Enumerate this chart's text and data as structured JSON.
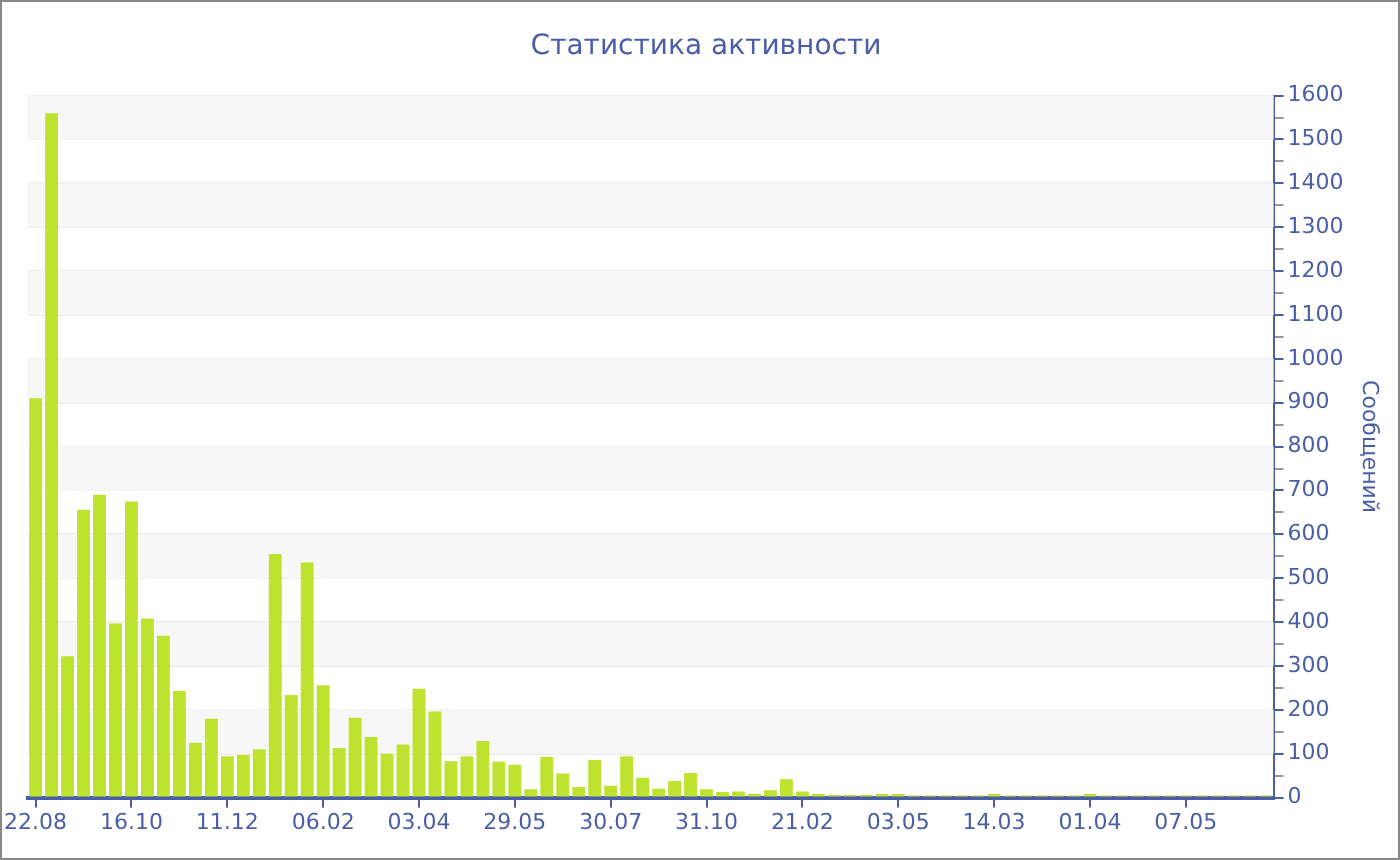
{
  "chart_data": {
    "type": "bar",
    "title": "Статистика активности",
    "ylabel": "Сообщений",
    "categories": [
      "22.08",
      null,
      null,
      null,
      null,
      null,
      "16.10",
      null,
      null,
      null,
      null,
      null,
      "11.12",
      null,
      null,
      null,
      null,
      null,
      "06.02",
      null,
      null,
      null,
      null,
      null,
      "03.04",
      null,
      null,
      null,
      null,
      null,
      "29.05",
      null,
      null,
      null,
      null,
      null,
      "30.07",
      null,
      null,
      null,
      null,
      null,
      "31.10",
      null,
      null,
      null,
      null,
      null,
      "21.02",
      null,
      null,
      null,
      null,
      null,
      "03.05",
      null,
      null,
      null,
      null,
      null,
      "14.03",
      null,
      null,
      null,
      null,
      null,
      "01.04",
      null,
      null,
      null,
      null,
      null,
      "07.05",
      null,
      null,
      null,
      null,
      null
    ],
    "values": [
      910,
      1560,
      322,
      656,
      690,
      397,
      675,
      408,
      369,
      243,
      125,
      180,
      94,
      97,
      110,
      555,
      234,
      536,
      256,
      113,
      182,
      138,
      100,
      121,
      248,
      196,
      83,
      94,
      129,
      82,
      75,
      19,
      93,
      55,
      24,
      86,
      27,
      94,
      45,
      20,
      38,
      56,
      19,
      13,
      14,
      8,
      17,
      42,
      14,
      8,
      6,
      6,
      6,
      8,
      8,
      5,
      5,
      5,
      5,
      5,
      8,
      5,
      5,
      5,
      5,
      5,
      8,
      5,
      5,
      5,
      5,
      5,
      5,
      5,
      5,
      5,
      5,
      5
    ],
    "color": "#bde22f",
    "ylim": [
      0,
      1600
    ],
    "yticks": [
      0,
      {
        "value": 50,
        "label": null
      },
      100,
      {
        "value": 150,
        "label": null
      },
      200,
      {
        "value": 250,
        "label": null
      },
      300,
      {
        "value": 350,
        "label": null
      },
      400,
      {
        "value": 450,
        "label": null
      },
      500,
      {
        "value": 550,
        "label": null
      },
      600,
      {
        "value": 650,
        "label": null
      },
      700,
      {
        "value": 750,
        "label": null
      },
      800,
      {
        "value": 850,
        "label": null
      },
      900,
      {
        "value": 950,
        "label": null
      },
      1000,
      {
        "value": 1050,
        "label": null
      },
      1100,
      {
        "value": 1150,
        "label": null
      },
      1200,
      {
        "value": 1250,
        "label": null
      },
      1300,
      {
        "value": 1350,
        "label": null
      },
      1400,
      {
        "value": 1450,
        "label": null
      },
      1500,
      {
        "value": 1550,
        "label": null
      },
      1600
    ],
    "grid": true,
    "legend": false
  }
}
